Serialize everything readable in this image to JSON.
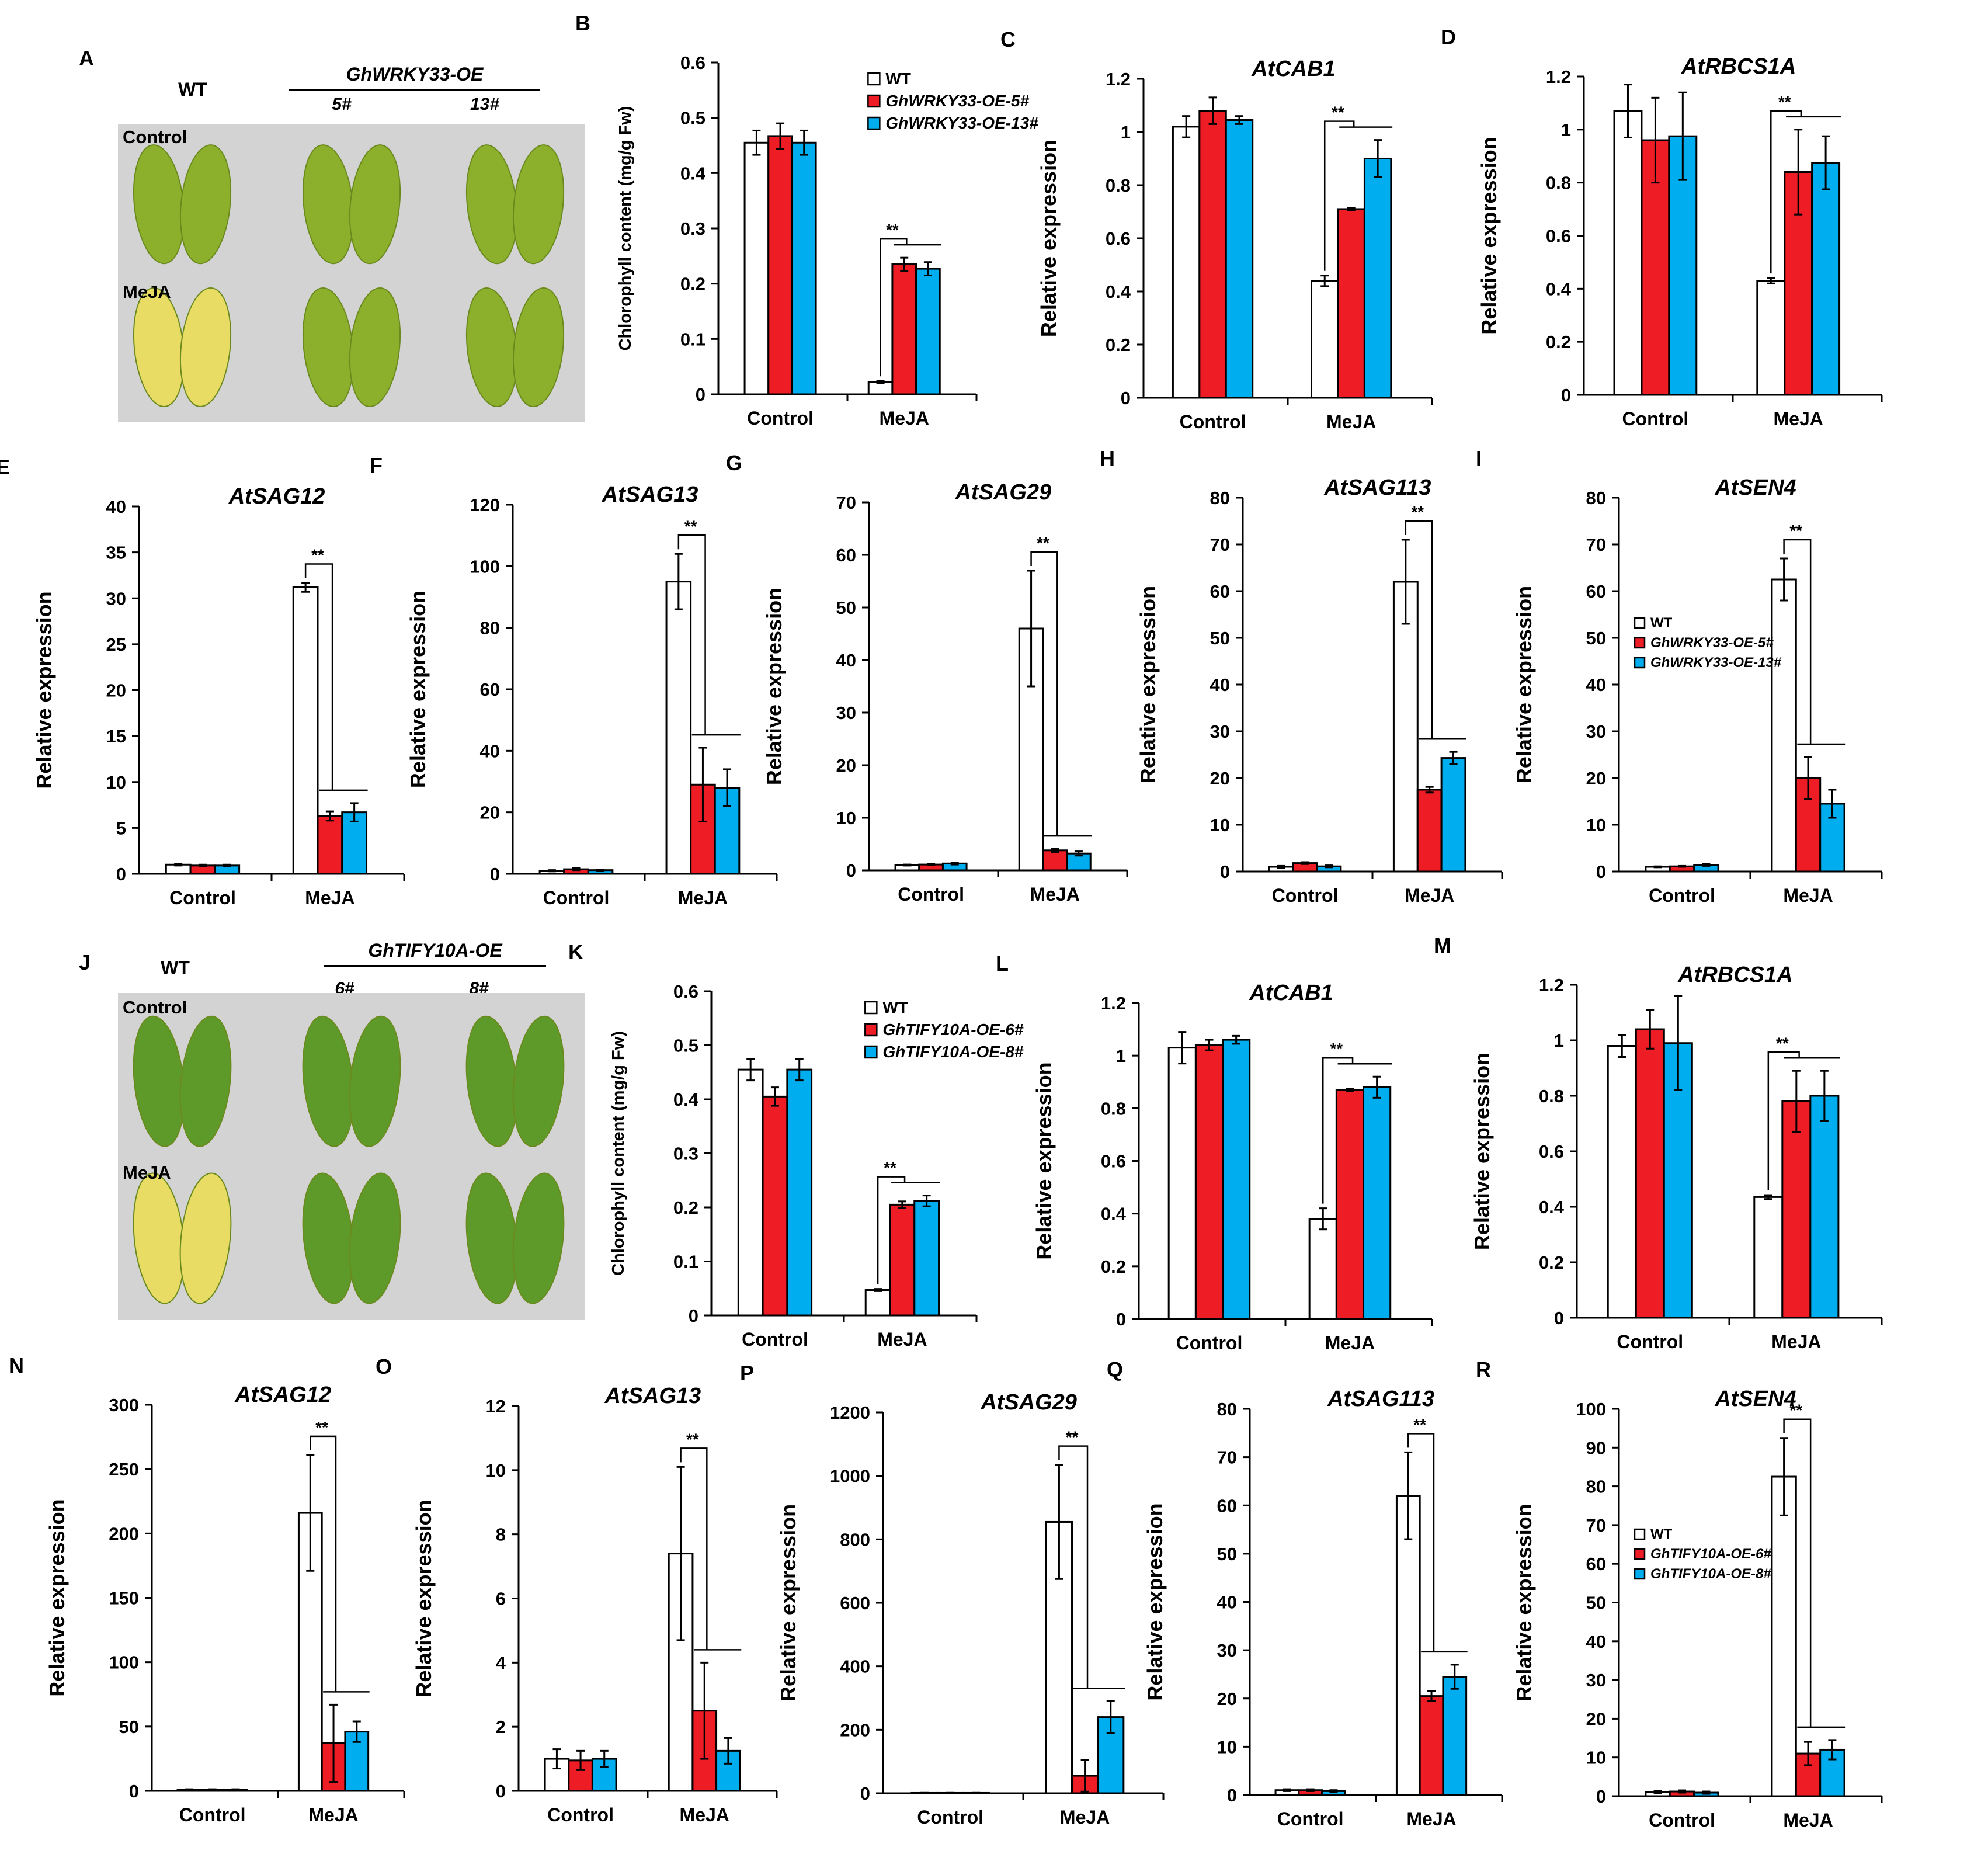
{
  "colors": {
    "wt": "#ffffff",
    "oe_a": "#ee1c24",
    "oe_b": "#00adef",
    "axis": "#000000",
    "photo_bg": "#d3d3d3",
    "leaf_green": "#8db02c",
    "leaf_yellow": "#e8dc64",
    "leaf_dark": "#5e9a2a"
  },
  "photo_panels": [
    {
      "id": "A",
      "letter": "A",
      "wt_label": "WT",
      "transgene": "GhWRKY33-OE",
      "line_labels": [
        "5#",
        "13#"
      ],
      "condition_labels": [
        "Control",
        "MeJA"
      ],
      "leaf_icon": "leaf-pair"
    },
    {
      "id": "J",
      "letter": "J",
      "wt_label": "WT",
      "transgene": "GhTIFY10A-OE",
      "line_labels": [
        "6#",
        "8#"
      ],
      "condition_labels": [
        "Control",
        "MeJA"
      ],
      "leaf_icon": "leaf-pair"
    }
  ],
  "chart_data": [
    {
      "id": "B",
      "letter": "B",
      "type": "bar",
      "title": "",
      "ylabel": "Chlorophyll content (mg/g Fw)",
      "categories": [
        "Control",
        "MeJA"
      ],
      "ylim": [
        0,
        0.6
      ],
      "ticks": [
        "0",
        "0.1",
        "0.2",
        "0.3",
        "0.4",
        "0.5",
        "0.6"
      ],
      "sig": "**",
      "legend": [
        "WT",
        "GhWRKY33-OE-5#",
        "GhWRKY33-OE-13#"
      ],
      "series": [
        {
          "name": "WT",
          "values": [
            0.455,
            0.022
          ],
          "errors": [
            0.022,
            0.002
          ]
        },
        {
          "name": "GhWRKY33-OE-5#",
          "values": [
            0.467,
            0.235
          ],
          "errors": [
            0.023,
            0.012
          ]
        },
        {
          "name": "GhWRKY33-OE-13#",
          "values": [
            0.455,
            0.227
          ],
          "errors": [
            0.022,
            0.012
          ]
        }
      ]
    },
    {
      "id": "C",
      "letter": "C",
      "type": "bar",
      "title": "AtCAB1",
      "ylabel": "Relative expression",
      "categories": [
        "Control",
        "MeJA"
      ],
      "ylim": [
        0,
        1.2
      ],
      "ticks": [
        "0",
        "0.2",
        "0.4",
        "0.6",
        "0.8",
        "1",
        "1.2"
      ],
      "sig": "**",
      "legend": [],
      "series": [
        {
          "name": "WT",
          "values": [
            1.02,
            0.44
          ],
          "errors": [
            0.04,
            0.02
          ]
        },
        {
          "name": "GhWRKY33-OE-5#",
          "values": [
            1.08,
            0.71
          ],
          "errors": [
            0.05,
            0.005
          ]
        },
        {
          "name": "GhWRKY33-OE-13#",
          "values": [
            1.045,
            0.9
          ],
          "errors": [
            0.015,
            0.07
          ]
        }
      ]
    },
    {
      "id": "D",
      "letter": "D",
      "type": "bar",
      "title": "AtRBCS1A",
      "ylabel": "Relative expression",
      "categories": [
        "Control",
        "MeJA"
      ],
      "ylim": [
        0,
        1.2
      ],
      "ticks": [
        "0",
        "0.2",
        "0.4",
        "0.6",
        "0.8",
        "1",
        "1.2"
      ],
      "sig": "**",
      "legend": [],
      "series": [
        {
          "name": "WT",
          "values": [
            1.07,
            0.43
          ],
          "errors": [
            0.1,
            0.01
          ]
        },
        {
          "name": "GhWRKY33-OE-5#",
          "values": [
            0.96,
            0.84
          ],
          "errors": [
            0.16,
            0.16
          ]
        },
        {
          "name": "GhWRKY33-OE-13#",
          "values": [
            0.975,
            0.875
          ],
          "errors": [
            0.165,
            0.1
          ]
        }
      ]
    },
    {
      "id": "E",
      "letter": "E",
      "type": "bar",
      "title": "AtSAG12",
      "ylabel": "Relative expression",
      "categories": [
        "Control",
        "MeJA"
      ],
      "ylim": [
        0,
        40
      ],
      "ticks": [
        "0",
        "5",
        "10",
        "15",
        "20",
        "25",
        "30",
        "35",
        "40"
      ],
      "sig": "**",
      "legend": [],
      "series": [
        {
          "name": "WT",
          "values": [
            1,
            31.2
          ],
          "errors": [
            0.1,
            0.5
          ]
        },
        {
          "name": "GhWRKY33-OE-5#",
          "values": [
            0.9,
            6.3
          ],
          "errors": [
            0.1,
            0.5
          ]
        },
        {
          "name": "GhWRKY33-OE-13#",
          "values": [
            0.9,
            6.7
          ],
          "errors": [
            0.1,
            1
          ]
        }
      ]
    },
    {
      "id": "F",
      "letter": "F",
      "type": "bar",
      "title": "AtSAG13",
      "ylabel": "Relative expression",
      "categories": [
        "Control",
        "MeJA"
      ],
      "ylim": [
        0,
        120
      ],
      "ticks": [
        "0",
        "20",
        "40",
        "60",
        "80",
        "100",
        "120"
      ],
      "sig": "**",
      "legend": [],
      "series": [
        {
          "name": "WT",
          "values": [
            1,
            95
          ],
          "errors": [
            0.2,
            9
          ]
        },
        {
          "name": "GhWRKY33-OE-5#",
          "values": [
            1.5,
            29
          ],
          "errors": [
            0.3,
            12
          ]
        },
        {
          "name": "GhWRKY33-OE-13#",
          "values": [
            1.2,
            28
          ],
          "errors": [
            0.2,
            6
          ]
        }
      ]
    },
    {
      "id": "G",
      "letter": "G",
      "type": "bar",
      "title": "AtSAG29",
      "ylabel": "Relative expression",
      "categories": [
        "Control",
        "MeJA"
      ],
      "ylim": [
        0,
        70
      ],
      "ticks": [
        "0",
        "10",
        "20",
        "30",
        "40",
        "50",
        "60",
        "70"
      ],
      "sig": "**",
      "legend": [],
      "series": [
        {
          "name": "WT",
          "values": [
            1,
            46
          ],
          "errors": [
            0.1,
            11
          ]
        },
        {
          "name": "GhWRKY33-OE-5#",
          "values": [
            1.1,
            3.8
          ],
          "errors": [
            0.1,
            0.3
          ]
        },
        {
          "name": "GhWRKY33-OE-13#",
          "values": [
            1.3,
            3.2
          ],
          "errors": [
            0.2,
            0.4
          ]
        }
      ]
    },
    {
      "id": "H",
      "letter": "H",
      "type": "bar",
      "title": "AtSAG113",
      "ylabel": "Relative expression",
      "categories": [
        "Control",
        "MeJA"
      ],
      "ylim": [
        0,
        80
      ],
      "ticks": [
        "0",
        "10",
        "20",
        "30",
        "40",
        "50",
        "60",
        "70",
        "80"
      ],
      "sig": "**",
      "legend": [],
      "series": [
        {
          "name": "WT",
          "values": [
            1,
            62
          ],
          "errors": [
            0.2,
            9
          ]
        },
        {
          "name": "GhWRKY33-OE-5#",
          "values": [
            1.8,
            17.5
          ],
          "errors": [
            0.2,
            0.6
          ]
        },
        {
          "name": "GhWRKY33-OE-13#",
          "values": [
            1.1,
            24.3
          ],
          "errors": [
            0.2,
            1.3
          ]
        }
      ]
    },
    {
      "id": "I",
      "letter": "I",
      "type": "bar",
      "title": "AtSEN4",
      "ylabel": "Relative expression",
      "categories": [
        "Control",
        "MeJA"
      ],
      "ylim": [
        0,
        80
      ],
      "ticks": [
        "0",
        "10",
        "20",
        "30",
        "40",
        "50",
        "60",
        "70",
        "80"
      ],
      "sig": "**",
      "legend": [
        "WT",
        "GhWRKY33-OE-5#",
        "GhWRKY33-OE-13#"
      ],
      "series": [
        {
          "name": "WT",
          "values": [
            1,
            62.5
          ],
          "errors": [
            0.1,
            4.5
          ]
        },
        {
          "name": "GhWRKY33-OE-5#",
          "values": [
            1.1,
            20
          ],
          "errors": [
            0.1,
            4.5
          ]
        },
        {
          "name": "GhWRKY33-OE-13#",
          "values": [
            1.4,
            14.5
          ],
          "errors": [
            0.2,
            3
          ]
        }
      ]
    },
    {
      "id": "K",
      "letter": "K",
      "type": "bar",
      "title": "",
      "ylabel": "Chlorophyll content  (mg/g Fw)",
      "categories": [
        "Control",
        "MeJA"
      ],
      "ylim": [
        0,
        0.6
      ],
      "ticks": [
        "0",
        "0.1",
        "0.2",
        "0.3",
        "0.4",
        "0.5",
        "0.6"
      ],
      "sig": "**",
      "legend": [
        "WT",
        "GhTIFY10A-OE-6#",
        "GhTIFY10A-OE-8#"
      ],
      "series": [
        {
          "name": "WT",
          "values": [
            0.455,
            0.047
          ],
          "errors": [
            0.02,
            0.002
          ]
        },
        {
          "name": "GhTIFY10A-OE-6#",
          "values": [
            0.405,
            0.205
          ],
          "errors": [
            0.017,
            0.006
          ]
        },
        {
          "name": "GhTIFY10A-OE-8#",
          "values": [
            0.455,
            0.212
          ],
          "errors": [
            0.02,
            0.01
          ]
        }
      ]
    },
    {
      "id": "L",
      "letter": "L",
      "type": "bar",
      "title": "AtCAB1",
      "ylabel": "Relative expression",
      "categories": [
        "Control",
        "MeJA"
      ],
      "ylim": [
        0,
        1.2
      ],
      "ticks": [
        "0",
        "0.2",
        "0.4",
        "0.6",
        "0.8",
        "1",
        "1.2"
      ],
      "sig": "**",
      "legend": [],
      "series": [
        {
          "name": "WT",
          "values": [
            1.03,
            0.38
          ],
          "errors": [
            0.06,
            0.04
          ]
        },
        {
          "name": "GhTIFY10A-OE-6#",
          "values": [
            1.04,
            0.87
          ],
          "errors": [
            0.02,
            0.005
          ]
        },
        {
          "name": "GhTIFY10A-OE-8#",
          "values": [
            1.06,
            0.88
          ],
          "errors": [
            0.015,
            0.04
          ]
        }
      ]
    },
    {
      "id": "M",
      "letter": "M",
      "type": "bar",
      "title": "AtRBCS1A",
      "ylabel": "Relative expression",
      "categories": [
        "Control",
        "MeJA"
      ],
      "ylim": [
        0,
        1.2
      ],
      "ticks": [
        "0",
        "0.2",
        "0.4",
        "0.6",
        "0.8",
        "1",
        "1.2"
      ],
      "sig": "**",
      "legend": [],
      "series": [
        {
          "name": "WT",
          "values": [
            0.98,
            0.435
          ],
          "errors": [
            0.04,
            0.007
          ]
        },
        {
          "name": "GhTIFY10A-OE-6#",
          "values": [
            1.04,
            0.78
          ],
          "errors": [
            0.07,
            0.11
          ]
        },
        {
          "name": "GhTIFY10A-OE-8#",
          "values": [
            0.99,
            0.8
          ],
          "errors": [
            0.17,
            0.09
          ]
        }
      ]
    },
    {
      "id": "N",
      "letter": "N",
      "type": "bar",
      "title": "AtSAG12",
      "ylabel": "Relative expression",
      "categories": [
        "Control",
        "MeJA"
      ],
      "ylim": [
        0,
        300
      ],
      "ticks": [
        "0",
        "50",
        "100",
        "150",
        "200",
        "250",
        "300"
      ],
      "sig": "**",
      "legend": [],
      "series": [
        {
          "name": "WT",
          "values": [
            1,
            216
          ],
          "errors": [
            0.3,
            45
          ]
        },
        {
          "name": "GhTIFY10A-OE-6#",
          "values": [
            1,
            37
          ],
          "errors": [
            0.3,
            30
          ]
        },
        {
          "name": "GhTIFY10A-OE-8#",
          "values": [
            1,
            46
          ],
          "errors": [
            0.3,
            8
          ]
        }
      ]
    },
    {
      "id": "O",
      "letter": "O",
      "type": "bar",
      "title": "AtSAG13",
      "ylabel": "Relative expression",
      "categories": [
        "Control",
        "MeJA"
      ],
      "ylim": [
        0,
        12
      ],
      "ticks": [
        "0",
        "2",
        "4",
        "6",
        "8",
        "10",
        "12"
      ],
      "sig": "**",
      "legend": [],
      "series": [
        {
          "name": "WT",
          "values": [
            1,
            7.4
          ],
          "errors": [
            0.3,
            2.7
          ]
        },
        {
          "name": "GhTIFY10A-OE-6#",
          "values": [
            0.95,
            2.5
          ],
          "errors": [
            0.3,
            1.5
          ]
        },
        {
          "name": "GhTIFY10A-OE-8#",
          "values": [
            1,
            1.25
          ],
          "errors": [
            0.25,
            0.4
          ]
        }
      ]
    },
    {
      "id": "P",
      "letter": "P",
      "type": "bar",
      "title": "AtSAG29",
      "ylabel": "Relative expression",
      "categories": [
        "Control",
        "MeJA"
      ],
      "ylim": [
        0,
        1200
      ],
      "ticks": [
        "0",
        "200",
        "400",
        "600",
        "800",
        "1000",
        "1200"
      ],
      "sig": "**",
      "legend": [],
      "series": [
        {
          "name": "WT",
          "values": [
            1,
            855
          ],
          "errors": [
            0.3,
            180
          ]
        },
        {
          "name": "GhTIFY10A-OE-6#",
          "values": [
            1,
            55
          ],
          "errors": [
            0.3,
            50
          ]
        },
        {
          "name": "GhTIFY10A-OE-8#",
          "values": [
            1,
            240
          ],
          "errors": [
            0.3,
            50
          ]
        }
      ]
    },
    {
      "id": "Q",
      "letter": "Q",
      "type": "bar",
      "title": "AtSAG113",
      "ylabel": "Relative expression",
      "categories": [
        "Control",
        "MeJA"
      ],
      "ylim": [
        0,
        80
      ],
      "ticks": [
        "0",
        "10",
        "20",
        "30",
        "40",
        "50",
        "60",
        "70",
        "80"
      ],
      "sig": "**",
      "legend": [],
      "series": [
        {
          "name": "WT",
          "values": [
            1,
            62
          ],
          "errors": [
            0.2,
            9
          ]
        },
        {
          "name": "GhTIFY10A-OE-6#",
          "values": [
            1,
            20.5
          ],
          "errors": [
            0.2,
            1
          ]
        },
        {
          "name": "GhTIFY10A-OE-8#",
          "values": [
            0.8,
            24.5
          ],
          "errors": [
            0.2,
            2.5
          ]
        }
      ]
    },
    {
      "id": "R",
      "letter": "R",
      "type": "bar",
      "title": "AtSEN4",
      "ylabel": "Relative expression",
      "categories": [
        "Control",
        "MeJA"
      ],
      "ylim": [
        0,
        100
      ],
      "ticks": [
        "0",
        "10",
        "20",
        "30",
        "40",
        "50",
        "60",
        "70",
        "80",
        "90",
        "100"
      ],
      "sig": "**",
      "legend": [
        "WT",
        "GhTIFY10A-OE-6#",
        "GhTIFY10A-OE-8#"
      ],
      "series": [
        {
          "name": "WT",
          "values": [
            1,
            82.5
          ],
          "errors": [
            0.3,
            10
          ]
        },
        {
          "name": "GhTIFY10A-OE-6#",
          "values": [
            1.2,
            11
          ],
          "errors": [
            0.3,
            3
          ]
        },
        {
          "name": "GhTIFY10A-OE-8#",
          "values": [
            0.9,
            12
          ],
          "errors": [
            0.3,
            2.5
          ]
        }
      ]
    }
  ]
}
